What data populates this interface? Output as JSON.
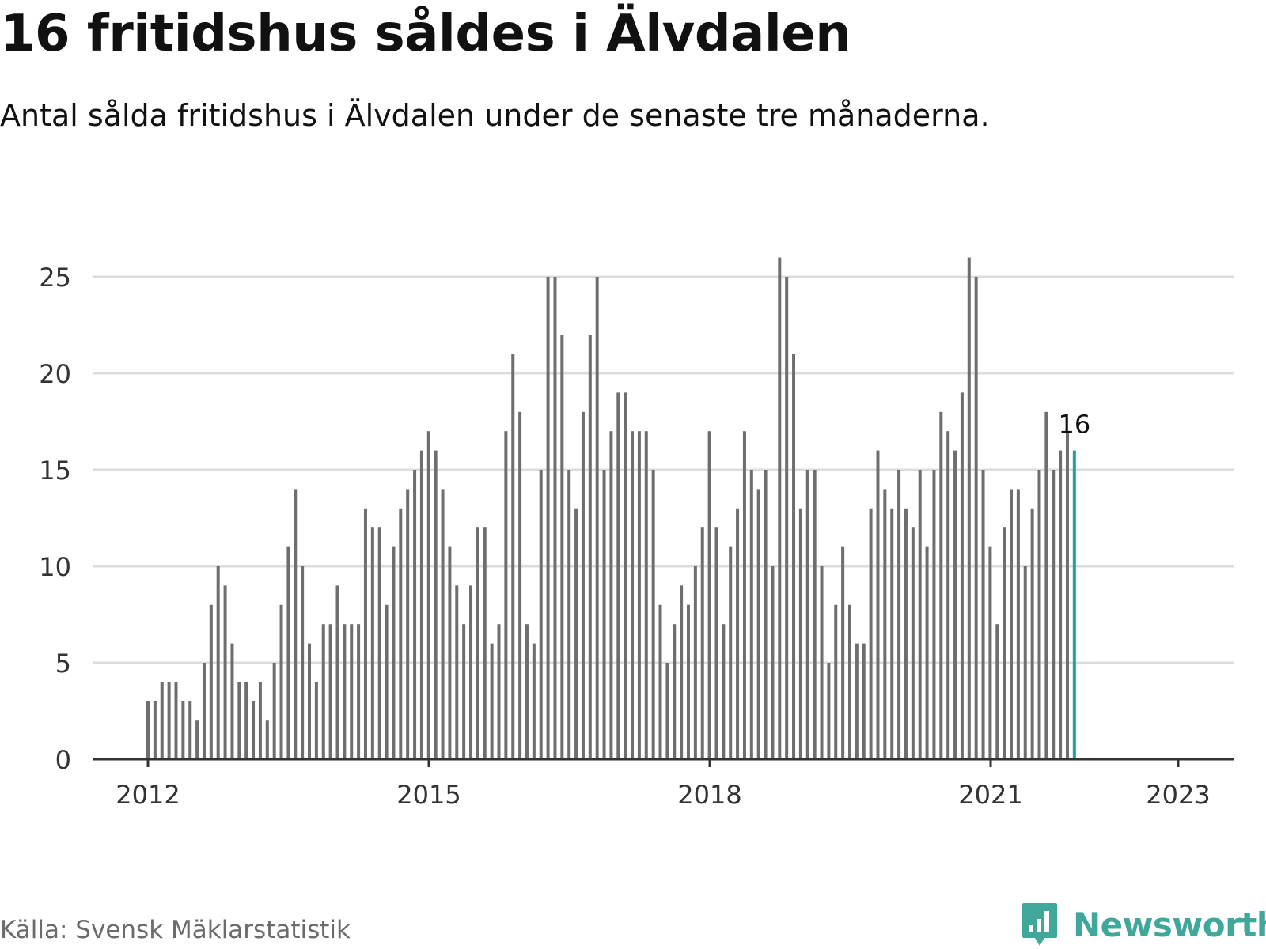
{
  "header": {
    "title": "16 fritidshus såldes i Älvdalen",
    "subtitle": "Antal sålda fritidshus i Älvdalen under de senaste tre månaderna."
  },
  "footer": {
    "source": "Källa: Svensk Mäklarstatistik",
    "brand": "Newsworthy"
  },
  "colors": {
    "bar": "#6e6e6e",
    "highlight": "#1fa39a",
    "grid": "#dcdcdc",
    "axis": "#333333",
    "brand": "#3fa89b"
  },
  "icons": {
    "brand": "newsworthy-logo-icon"
  },
  "chart_data": {
    "type": "bar",
    "title": "16 fritidshus såldes i Älvdalen",
    "subtitle": "Antal sålda fritidshus i Älvdalen under de senaste tre månaderna.",
    "x_start": "2012-01",
    "x_end": "2023-01",
    "interval": "month",
    "x_ticks": [
      "2012",
      "2015",
      "2018",
      "2021",
      "2023"
    ],
    "y_ticks": [
      0,
      5,
      10,
      15,
      20,
      25
    ],
    "ylim": [
      0,
      26
    ],
    "grid": true,
    "highlight_last": true,
    "last_label": "16",
    "values": [
      3,
      3,
      4,
      4,
      4,
      3,
      3,
      2,
      5,
      8,
      10,
      9,
      6,
      4,
      4,
      3,
      4,
      2,
      5,
      8,
      11,
      14,
      10,
      6,
      4,
      7,
      7,
      9,
      7,
      7,
      7,
      13,
      12,
      12,
      8,
      11,
      13,
      14,
      15,
      16,
      17,
      16,
      14,
      11,
      9,
      7,
      9,
      12,
      12,
      6,
      7,
      17,
      21,
      18,
      7,
      6,
      15,
      25,
      25,
      22,
      15,
      13,
      18,
      22,
      25,
      15,
      17,
      19,
      19,
      17,
      17,
      17,
      15,
      8,
      5,
      7,
      9,
      8,
      10,
      12,
      17,
      12,
      7,
      11,
      13,
      17,
      15,
      14,
      15,
      10,
      26,
      25,
      21,
      13,
      15,
      15,
      10,
      5,
      8,
      11,
      8,
      6,
      6,
      13,
      16,
      14,
      13,
      15,
      13,
      12,
      15,
      11,
      15,
      18,
      17,
      16,
      19,
      26,
      25,
      15,
      11,
      7,
      12,
      14,
      14,
      10,
      13,
      15,
      18,
      15,
      16,
      17,
      16
    ]
  }
}
